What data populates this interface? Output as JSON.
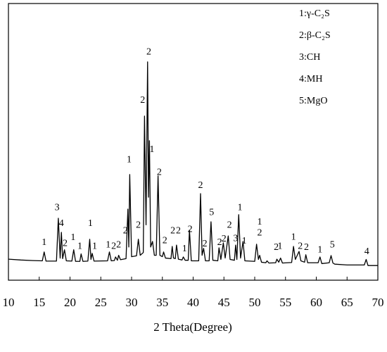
{
  "chart_data": {
    "type": "line",
    "xlabel": "2 Theta(Degree)",
    "xlim": [
      10,
      70
    ],
    "xticks": [
      10,
      15,
      20,
      25,
      30,
      35,
      40,
      45,
      50,
      55,
      60,
      65,
      70
    ],
    "ylim": [
      0,
      100
    ],
    "legend_items": [
      "1:γ-C₂S",
      "2:β-C₂S",
      "3:CH",
      "4:MH",
      "5:MgO"
    ],
    "x": [
      10,
      12,
      14,
      15.5,
      15.8,
      16.1,
      17.8,
      18.1,
      18.4,
      18.6,
      18.8,
      19.1,
      19.4,
      20.3,
      20.6,
      20.9,
      21.6,
      21.8,
      22.1,
      22.9,
      23.2,
      23.4,
      23.6,
      23.9,
      26.1,
      26.4,
      26.7,
      27.2,
      27.4,
      27.7,
      27.9,
      28.2,
      29.1,
      29.4,
      29.55,
      29.7,
      30,
      30.8,
      31.1,
      31.4,
      31.9,
      32.1,
      32.35,
      32.6,
      32.75,
      32.9,
      33.1,
      33.4,
      33.7,
      34,
      34.3,
      34.6,
      35,
      35.2,
      35.5,
      36.4,
      36.6,
      36.8,
      37.1,
      37.3,
      37.6,
      38.2,
      38.4,
      38.7,
      39.2,
      39.4,
      39.7,
      40.9,
      41.2,
      41.45,
      41.7,
      42,
      42.6,
      42.9,
      43.2,
      44,
      44.2,
      44.5,
      44.9,
      45.2,
      45.7,
      46,
      46.7,
      46.9,
      47.1,
      47.4,
      47.7,
      48.1,
      48.4,
      50,
      50.3,
      50.6,
      50.8,
      51.1,
      51.8,
      52,
      52.3,
      53.4,
      53.6,
      53.9,
      54.2,
      54.5,
      56,
      56.3,
      56.6,
      57.2,
      57.5,
      58.1,
      58.3,
      58.6,
      60.3,
      60.6,
      60.9,
      62.1,
      62.4,
      62.7,
      63,
      65,
      67.8,
      68.1,
      68.4,
      70
    ],
    "series": [
      {
        "color": "#000000",
        "values": [
          7.6,
          7.3,
          7.1,
          7.0,
          10.2,
          6.9,
          6.9,
          22.4,
          8,
          17.3,
          7.8,
          11,
          7,
          6.9,
          11,
          6.8,
          6.8,
          9.5,
          6.8,
          6.9,
          14.8,
          7.5,
          9.7,
          6.9,
          7,
          10.2,
          7,
          7.1,
          8.4,
          7.2,
          9,
          7.4,
          7.8,
          25.7,
          12,
          38.2,
          8.5,
          8.8,
          14.8,
          9,
          10,
          59.3,
          20,
          78.9,
          30,
          50.4,
          12,
          14,
          9,
          9,
          37.7,
          9,
          8.5,
          10.2,
          8,
          7.8,
          12.2,
          8,
          7.8,
          12.7,
          7.6,
          7.3,
          8.4,
          7.2,
          7.2,
          18.1,
          7,
          7,
          31.3,
          9,
          11.5,
          7,
          7,
          21.1,
          7.2,
          7,
          11.7,
          7.5,
          13.5,
          8,
          16,
          7.5,
          7.2,
          12.7,
          7.5,
          23.7,
          8,
          14,
          7,
          6.8,
          13,
          7.5,
          9,
          6.5,
          6.3,
          7,
          6.2,
          6.3,
          7.6,
          6.5,
          8,
          6.2,
          6.4,
          12.2,
          7.5,
          10.4,
          7,
          6.5,
          9.2,
          6.3,
          6.3,
          8.4,
          6,
          6.3,
          8.9,
          6.2,
          5.8,
          5.5,
          5.5,
          7.5,
          5.3,
          5.3
        ]
      }
    ],
    "annotations": [
      {
        "text": "1",
        "x": 15.8,
        "y": 13.5
      },
      {
        "text": "3",
        "x": 17.9,
        "y": 26.2
      },
      {
        "text": "4",
        "x": 18.6,
        "y": 20.4
      },
      {
        "text": "2",
        "x": 19.2,
        "y": 13.2
      },
      {
        "text": "1",
        "x": 20.5,
        "y": 15.3
      },
      {
        "text": "1",
        "x": 21.6,
        "y": 12.2
      },
      {
        "text": "1",
        "x": 23.3,
        "y": 20.4
      },
      {
        "text": "1",
        "x": 24.0,
        "y": 12.2
      },
      {
        "text": "1",
        "x": 26.2,
        "y": 12.7
      },
      {
        "text": "2",
        "x": 27.1,
        "y": 12.2
      },
      {
        "text": "2",
        "x": 27.9,
        "y": 12.7
      },
      {
        "text": "2",
        "x": 29.0,
        "y": 17.8
      },
      {
        "text": "1",
        "x": 29.6,
        "y": 43.5
      },
      {
        "text": "2",
        "x": 31.1,
        "y": 19.8
      },
      {
        "text": "2",
        "x": 31.8,
        "y": 64.9
      },
      {
        "text": "2",
        "x": 32.8,
        "y": 82.4
      },
      {
        "text": "1",
        "x": 33.3,
        "y": 47.1
      },
      {
        "text": "2",
        "x": 34.5,
        "y": 38.9
      },
      {
        "text": "2",
        "x": 35.4,
        "y": 14.2
      },
      {
        "text": "2",
        "x": 36.7,
        "y": 17.8
      },
      {
        "text": "2",
        "x": 37.6,
        "y": 17.8
      },
      {
        "text": "1",
        "x": 38.6,
        "y": 11.2
      },
      {
        "text": "2",
        "x": 39.5,
        "y": 18.3
      },
      {
        "text": "2",
        "x": 41.2,
        "y": 34.1
      },
      {
        "text": "2",
        "x": 41.9,
        "y": 13
      },
      {
        "text": "5",
        "x": 43.0,
        "y": 24.4
      },
      {
        "text": "2",
        "x": 44.3,
        "y": 13.5
      },
      {
        "text": "2",
        "x": 45.0,
        "y": 14.8
      },
      {
        "text": "2",
        "x": 45.9,
        "y": 19.8
      },
      {
        "text": "3",
        "x": 46.9,
        "y": 15
      },
      {
        "text": "1",
        "x": 47.6,
        "y": 26.2
      },
      {
        "text": "1",
        "x": 48.3,
        "y": 14
      },
      {
        "text": "1",
        "x": 50.8,
        "y": 20.9
      },
      {
        "text": "2",
        "x": 50.8,
        "y": 17
      },
      {
        "text": "2",
        "x": 53.5,
        "y": 11.7
      },
      {
        "text": "1",
        "x": 54.1,
        "y": 12.2
      },
      {
        "text": "1",
        "x": 56.3,
        "y": 15.5
      },
      {
        "text": "2",
        "x": 57.4,
        "y": 12.2
      },
      {
        "text": "2",
        "x": 58.4,
        "y": 11.7
      },
      {
        "text": "1",
        "x": 60.6,
        "y": 10.9
      },
      {
        "text": "5",
        "x": 62.6,
        "y": 12.7
      },
      {
        "text": "4",
        "x": 68.2,
        "y": 10.2
      }
    ]
  }
}
